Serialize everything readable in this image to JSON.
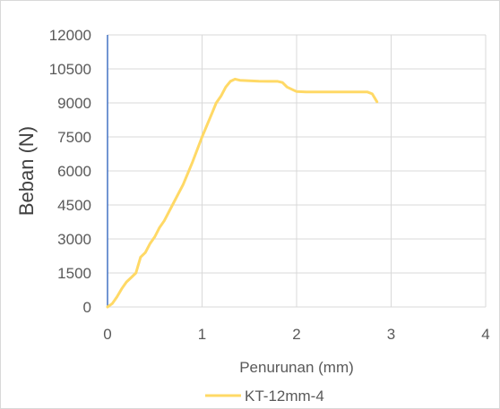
{
  "chart_data": {
    "type": "line",
    "title": "",
    "xlabel": "Penurunan (mm)",
    "ylabel": "Beban (N)",
    "xlim": [
      0,
      4
    ],
    "ylim": [
      0,
      12000
    ],
    "x_ticks": [
      "0",
      "1",
      "2",
      "3",
      "4"
    ],
    "y_ticks": [
      "0",
      "1500",
      "3000",
      "4500",
      "6000",
      "7500",
      "9000",
      "10500",
      "12000"
    ],
    "grid": true,
    "legend_position": "bottom",
    "colors": {
      "series": "#FFD966",
      "grid": "#d9d9d9",
      "y_axis": "#4472C4"
    },
    "series": [
      {
        "name": "KT-12mm-4",
        "x": [
          0,
          0.05,
          0.1,
          0.15,
          0.2,
          0.25,
          0.3,
          0.35,
          0.4,
          0.45,
          0.5,
          0.55,
          0.6,
          0.7,
          0.8,
          0.9,
          1.0,
          1.1,
          1.15,
          1.2,
          1.25,
          1.3,
          1.35,
          1.4,
          1.5,
          1.6,
          1.7,
          1.8,
          1.85,
          1.9,
          2.0,
          2.1,
          2.2,
          2.3,
          2.4,
          2.5,
          2.6,
          2.7,
          2.75,
          2.8,
          2.85
        ],
        "y": [
          0,
          150,
          450,
          800,
          1100,
          1300,
          1500,
          2200,
          2400,
          2800,
          3100,
          3500,
          3800,
          4600,
          5400,
          6400,
          7500,
          8500,
          9000,
          9300,
          9700,
          9950,
          10050,
          10000,
          9980,
          9960,
          9950,
          9950,
          9900,
          9700,
          9500,
          9480,
          9480,
          9480,
          9480,
          9480,
          9480,
          9480,
          9480,
          9400,
          9050
        ]
      }
    ]
  }
}
